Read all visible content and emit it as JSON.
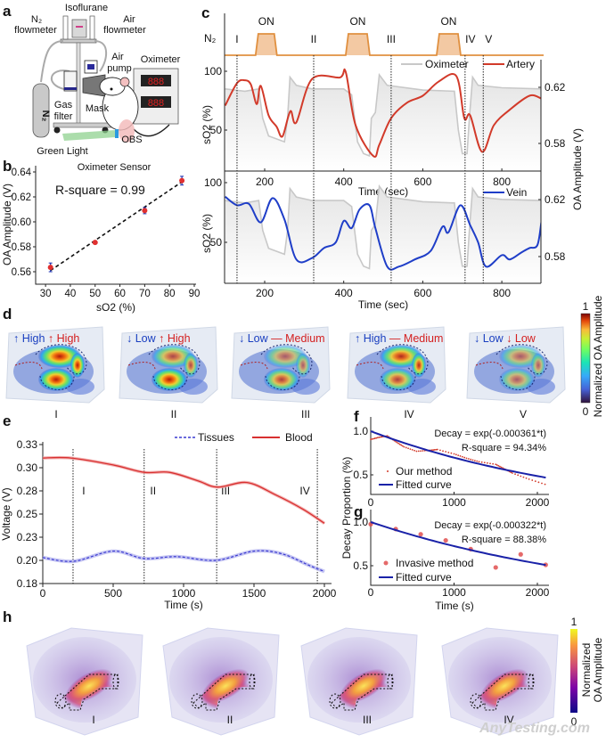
{
  "panel_letters": {
    "a": "a",
    "b": "b",
    "c": "c",
    "d": "d",
    "e": "e",
    "f": "f",
    "g": "g",
    "h": "h"
  },
  "panel_a": {
    "isoflurane": "Isoflurane",
    "n2_flowmeter_1": "N₂",
    "n2_flowmeter_2": "flowmeter",
    "air_flowmeter_1": "Air",
    "air_flowmeter_2": "flowmeter",
    "air_pump_1": "Air",
    "air_pump_2": "pump",
    "oximeter": "Oximeter",
    "gas_filter_1": "Gas",
    "gas_filter_2": "filter",
    "mask": "Mask",
    "obs": "OBS",
    "green_light": "Green Light",
    "oximeter_sensor": "Oximeter Sensor",
    "cylinder_label": "N₂",
    "display_digits": "888",
    "colors": {
      "green_light": "#8fd18f",
      "obs": "#f2b8b8",
      "digits": "#e02020"
    }
  },
  "panel_d": {
    "images": [
      {
        "vein_dir": "up",
        "vein": "High",
        "artery_dir": "up",
        "artery": "High",
        "label": "I"
      },
      {
        "vein_dir": "down",
        "vein": "Low",
        "artery_dir": "up",
        "artery": "High",
        "label": "II"
      },
      {
        "vein_dir": "down",
        "vein": "Low",
        "artery_dir": "flat",
        "artery": "Medium",
        "label": "III"
      },
      {
        "vein_dir": "up",
        "vein": "High",
        "artery_dir": "flat",
        "artery": "Medium",
        "label": "IV"
      },
      {
        "vein_dir": "down",
        "vein": "Low",
        "artery_dir": "down",
        "artery": "Low",
        "label": "V"
      }
    ],
    "colorbar": {
      "max": "1",
      "min": "0",
      "label": "Normalized OA Amplitude",
      "colormap": "turbo"
    },
    "colors": {
      "vein": "#1a3fc0",
      "artery": "#d42020"
    }
  },
  "panel_h": {
    "images": [
      {
        "label": "I"
      },
      {
        "label": "II"
      },
      {
        "label": "III"
      },
      {
        "label": "IV"
      }
    ],
    "colorbar": {
      "max": "1",
      "min": "0",
      "label_1": "Normalized",
      "label_2": "OA Amplitude",
      "colormap": "plasma"
    }
  },
  "watermark": {
    "cn": "嘉峪检测网",
    "en": "AnyTesting.com"
  },
  "chart_data": [
    {
      "id": "b",
      "type": "scatter",
      "xlabel": "sO2 (%)",
      "ylabel": "OA Amplitude (V)",
      "xlim": [
        26,
        90
      ],
      "ylim": [
        0.55,
        0.645
      ],
      "xticks": [
        30,
        40,
        50,
        60,
        70,
        80,
        90
      ],
      "yticks": [
        "0.56",
        "0.58",
        "0.60",
        "0.62",
        "0.64"
      ],
      "points": [
        {
          "x": 32,
          "y": 0.5635,
          "err": 0.0035
        },
        {
          "x": 50,
          "y": 0.5835,
          "err": 0.001
        },
        {
          "x": 70,
          "y": 0.609,
          "err": 0.0025
        },
        {
          "x": 85,
          "y": 0.633,
          "err": 0.0035
        }
      ],
      "fit": {
        "x": [
          32,
          85
        ],
        "y": [
          0.561,
          0.632
        ],
        "style": "dashed"
      },
      "annotation": "R-square = 0.99",
      "colors": {
        "point": "#e03030",
        "error": "#1a2fb0",
        "fit": "#111111"
      }
    },
    {
      "id": "c-top",
      "type": "line",
      "n2_label": "N₂",
      "on_label": "ON",
      "n2_on_periods": [
        [
          177,
          231
        ],
        [
          405,
          466
        ],
        [
          635,
          696
        ]
      ],
      "events": [
        {
          "label": "I",
          "t": 130
        },
        {
          "label": "II",
          "t": 324
        },
        {
          "label": "III",
          "t": 520
        },
        {
          "label": "IV",
          "t": 707
        },
        {
          "label": "V",
          "t": 753
        }
      ],
      "xlabel": "Time (sec)",
      "ylabel": "sO2 (%)",
      "ylabel_right": "OA Amplitude (V)",
      "xlim": [
        100,
        900
      ],
      "xticks": [
        200,
        400,
        600,
        800
      ],
      "yticks_left": [
        50,
        100
      ],
      "yticks_right": [
        "0.58",
        "0.62"
      ],
      "series": [
        {
          "name": "Oximeter",
          "axis": "left",
          "color": "#c8c8c8",
          "t": [
            100,
            150,
            185,
            195,
            210,
            250,
            258,
            264,
            280,
            320,
            400,
            420,
            435,
            450,
            465,
            470,
            480,
            490,
            510,
            600,
            680,
            690,
            700,
            712,
            718,
            726,
            740,
            800,
            900
          ],
          "y": [
            85,
            83,
            85,
            60,
            45,
            40,
            60,
            95,
            88,
            85,
            85,
            80,
            40,
            30,
            28,
            60,
            65,
            97,
            88,
            84,
            83,
            50,
            30,
            30,
            60,
            95,
            88,
            86,
            85
          ]
        },
        {
          "name": "Artery",
          "axis": "right",
          "color": "#d23a2a",
          "t": [
            100,
            130,
            150,
            165,
            180,
            190,
            210,
            230,
            245,
            265,
            280,
            320,
            390,
            405,
            430,
            475,
            490,
            520,
            560,
            600,
            640,
            685,
            705,
            720,
            750,
            780,
            820,
            870,
            900
          ],
          "y": [
            0.607,
            0.623,
            0.625,
            0.622,
            0.608,
            0.621,
            0.6,
            0.592,
            0.585,
            0.603,
            0.595,
            0.626,
            0.627,
            0.631,
            0.593,
            0.571,
            0.579,
            0.598,
            0.609,
            0.614,
            0.624,
            0.628,
            0.598,
            0.6,
            0.574,
            0.593,
            0.604,
            0.614,
            0.612
          ]
        }
      ],
      "legend_position": "top-right"
    },
    {
      "id": "c-bottom",
      "type": "line",
      "xlabel": "Time (sec)",
      "ylabel": "sO2 (%)",
      "xlim": [
        100,
        900
      ],
      "xticks": [
        200,
        400,
        600,
        800
      ],
      "yticks_left": [
        50,
        100
      ],
      "yticks_right": [
        "0.58",
        "0.62"
      ],
      "series": [
        {
          "name": "Oximeter",
          "axis": "left",
          "color": "#c8c8c8",
          "same_as": "c-top"
        },
        {
          "name": "Vein",
          "axis": "right",
          "color": "#1f3ec8",
          "t": [
            100,
            130,
            160,
            190,
            220,
            250,
            280,
            320,
            350,
            380,
            400,
            420,
            440,
            465,
            480,
            510,
            540,
            580,
            620,
            650,
            665,
            695,
            720,
            740,
            760,
            800,
            820,
            850,
            870,
            890,
            900
          ],
          "y": [
            0.622,
            0.616,
            0.617,
            0.604,
            0.621,
            0.606,
            0.578,
            0.579,
            0.586,
            0.59,
            0.605,
            0.6,
            0.613,
            0.616,
            0.6,
            0.573,
            0.573,
            0.578,
            0.584,
            0.601,
            0.597,
            0.616,
            0.602,
            0.59,
            0.573,
            0.581,
            0.578,
            0.583,
            0.586,
            0.588,
            0.604
          ]
        }
      ],
      "legend_position": "top-right"
    },
    {
      "id": "e",
      "type": "line",
      "xlabel": "Time (s)",
      "ylabel": "Voltage (V)",
      "xlim": [
        0,
        2000
      ],
      "ylim": [
        0.175,
        0.325
      ],
      "xticks": [
        0,
        500,
        1000,
        1500,
        2000
      ],
      "yticks": [
        "0.18",
        "0.20",
        "0.23",
        "0.25",
        "0.28",
        "0.30",
        "0.33"
      ],
      "events": [
        {
          "label": "I",
          "t": 215
        },
        {
          "label": "II",
          "t": 720
        },
        {
          "label": "III",
          "t": 1235
        },
        {
          "label": "IV",
          "t": 1950
        }
      ],
      "series": [
        {
          "name": "Tissues",
          "style": "dashed",
          "color": "#3a3ad0",
          "t": [
            0,
            220,
            500,
            720,
            950,
            1230,
            1500,
            1700,
            1900,
            2000
          ],
          "y": [
            0.203,
            0.199,
            0.21,
            0.202,
            0.204,
            0.2,
            0.21,
            0.207,
            0.194,
            0.188
          ]
        },
        {
          "name": "Blood",
          "style": "solid",
          "color": "#d83030",
          "t": [
            0,
            200,
            500,
            720,
            900,
            1100,
            1240,
            1450,
            1650,
            1850,
            2000
          ],
          "y": [
            0.3105,
            0.3105,
            0.303,
            0.295,
            0.295,
            0.286,
            0.279,
            0.284,
            0.271,
            0.255,
            0.24
          ]
        }
      ],
      "legend_position": "top-right"
    },
    {
      "id": "f",
      "type": "scatter+line",
      "ylabel": "Decay Proportion (%)",
      "xlim": [
        0,
        2130
      ],
      "ylim": [
        0.28,
        1.16
      ],
      "xticks": [
        0,
        1000,
        2000
      ],
      "yticks": [
        "0.5",
        "1.0"
      ],
      "equation": "Decay = exp(-0.000361*t)",
      "rsquare": "R-square = 94.34%",
      "fit_k": 0.000361,
      "series": [
        {
          "name": "Our method",
          "color": "#d23a2a",
          "t": [
            0,
            100,
            200,
            300,
            400,
            550,
            700,
            800,
            1000,
            1150,
            1300,
            1500,
            1600,
            1700,
            1900,
            2130
          ],
          "y": [
            0.905,
            0.93,
            0.946,
            0.88,
            0.82,
            0.77,
            0.78,
            0.79,
            0.74,
            0.69,
            0.65,
            0.62,
            0.57,
            0.52,
            0.45,
            0.38
          ]
        },
        {
          "name": "Fitted curve",
          "color": "#1a22a8"
        }
      ],
      "legend_position": "bottom-left"
    },
    {
      "id": "g",
      "type": "scatter+line",
      "xlabel": "Time (s)",
      "xlim": [
        0,
        2130
      ],
      "ylim": [
        0.28,
        1.13
      ],
      "xticks": [
        0,
        1000,
        2000
      ],
      "yticks": [
        "0.5",
        "1.0"
      ],
      "equation": "Decay = exp(-0.000322*t)",
      "rsquare": "R-square = 88.38%",
      "fit_k": 0.000322,
      "series": [
        {
          "name": "Invasive method",
          "color": "#e05050",
          "t": [
            0,
            300,
            600,
            900,
            1200,
            1500,
            1800,
            2100
          ],
          "y": [
            0.976,
            0.92,
            0.86,
            0.79,
            0.69,
            0.48,
            0.63,
            0.51
          ]
        },
        {
          "name": "Fitted curve",
          "color": "#1a22a8"
        }
      ],
      "legend_position": "bottom-left"
    }
  ]
}
